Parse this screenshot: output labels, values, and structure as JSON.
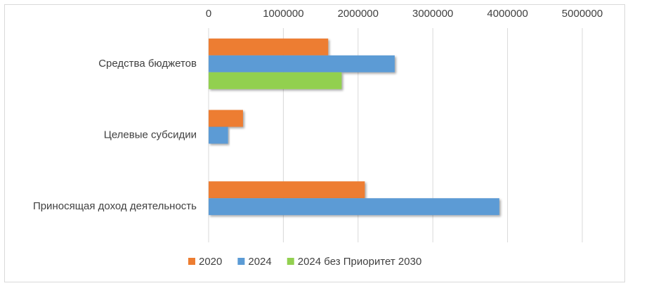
{
  "chart_data": {
    "type": "hbar",
    "categories": [
      "Средства бюджетов",
      "Целевые субсидии",
      "Приносящая доход деятельность"
    ],
    "series": [
      {
        "name": "2020",
        "color": "#ed7d31",
        "values": [
          1600000,
          460000,
          2090000
        ]
      },
      {
        "name": "2024",
        "color": "#5b9bd5",
        "values": [
          2490000,
          260000,
          3890000
        ]
      },
      {
        "name": "2024 без Приоритет 2030",
        "color": "#92d050",
        "values": [
          1780000,
          null,
          null
        ]
      }
    ],
    "xlim": [
      0,
      5000000
    ],
    "xticks": [
      0,
      1000000,
      2000000,
      3000000,
      4000000,
      5000000
    ],
    "grid": true,
    "legend": "bottom"
  }
}
